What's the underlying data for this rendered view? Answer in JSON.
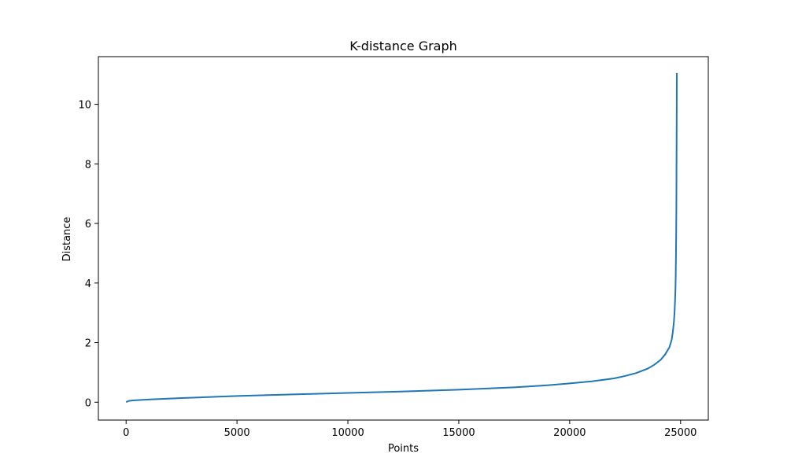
{
  "chart_data": {
    "type": "line",
    "title": "K-distance Graph",
    "xlabel": "Points",
    "ylabel": "Distance",
    "xlim": [
      -1250,
      26250
    ],
    "ylim": [
      -0.6,
      11.6
    ],
    "xticks": [
      0,
      5000,
      10000,
      15000,
      20000,
      25000
    ],
    "yticks": [
      0,
      2,
      4,
      6,
      8,
      10
    ],
    "grid": false,
    "legend": "none",
    "colors": {
      "line": "#1f77b4"
    },
    "series": [
      {
        "x": [
          0,
          100,
          300,
          1000,
          2500,
          5000,
          7500,
          10000,
          12500,
          15000,
          17500,
          19000,
          20000,
          21000,
          22000,
          22500,
          23000,
          23500,
          23800,
          24100,
          24300,
          24500,
          24600,
          24650,
          24700,
          24730,
          24750,
          24770,
          24780,
          24790,
          24800,
          24810,
          24815,
          24820,
          24825,
          24828,
          24830
        ],
        "y": [
          0.0,
          0.04,
          0.06,
          0.09,
          0.14,
          0.21,
          0.26,
          0.31,
          0.36,
          0.42,
          0.5,
          0.57,
          0.63,
          0.7,
          0.8,
          0.88,
          0.98,
          1.12,
          1.25,
          1.42,
          1.6,
          1.85,
          2.1,
          2.35,
          2.7,
          3.05,
          3.4,
          3.8,
          4.2,
          4.8,
          5.5,
          6.5,
          7.5,
          8.5,
          9.5,
          10.3,
          11.05
        ]
      }
    ]
  }
}
